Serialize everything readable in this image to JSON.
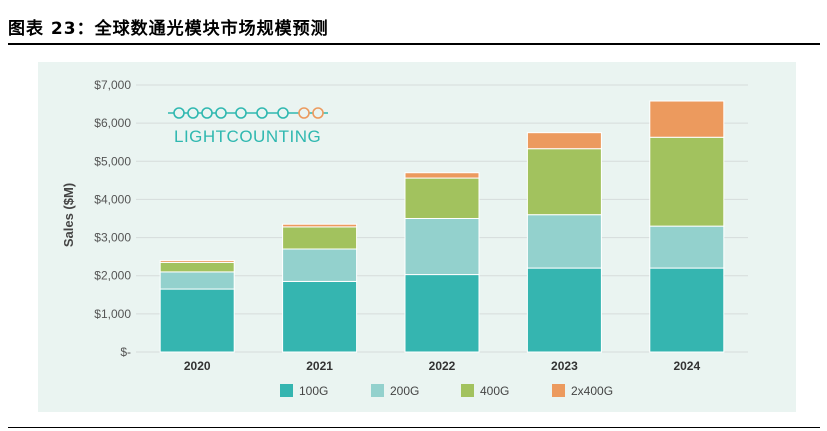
{
  "caption": "图表 23：全球数通光模块市场规模预测",
  "logo_text": "LIGHTCOUNTING",
  "colors": {
    "100G": "#35b5b0",
    "200G": "#93d1cd",
    "400G": "#a2c25e",
    "2x400G": "#ec9a5e",
    "panel": "#eaf4f1",
    "logo": "#2fb8b0",
    "logo_accent": "#ec9a5e"
  },
  "chart_data": {
    "type": "bar",
    "stacked": true,
    "categories": [
      "2020",
      "2021",
      "2022",
      "2023",
      "2024"
    ],
    "series": [
      {
        "name": "100G",
        "values": [
          1650,
          1850,
          2030,
          2200,
          2200
        ]
      },
      {
        "name": "200G",
        "values": [
          450,
          850,
          1470,
          1400,
          1100
        ]
      },
      {
        "name": "400G",
        "values": [
          250,
          580,
          1060,
          1730,
          2330
        ]
      },
      {
        "name": "2x400G",
        "values": [
          50,
          70,
          140,
          420,
          950
        ]
      }
    ],
    "ylabel": "Sales ($M)",
    "ylim": [
      0,
      7000
    ],
    "yticks": [
      0,
      1000,
      2000,
      3000,
      4000,
      5000,
      6000,
      7000
    ],
    "ytick_labels": [
      "$-",
      "$1,000",
      "$2,000",
      "$3,000",
      "$4,000",
      "$5,000",
      "$6,000",
      "$7,000"
    ],
    "grid": true,
    "legend_position": "bottom"
  }
}
